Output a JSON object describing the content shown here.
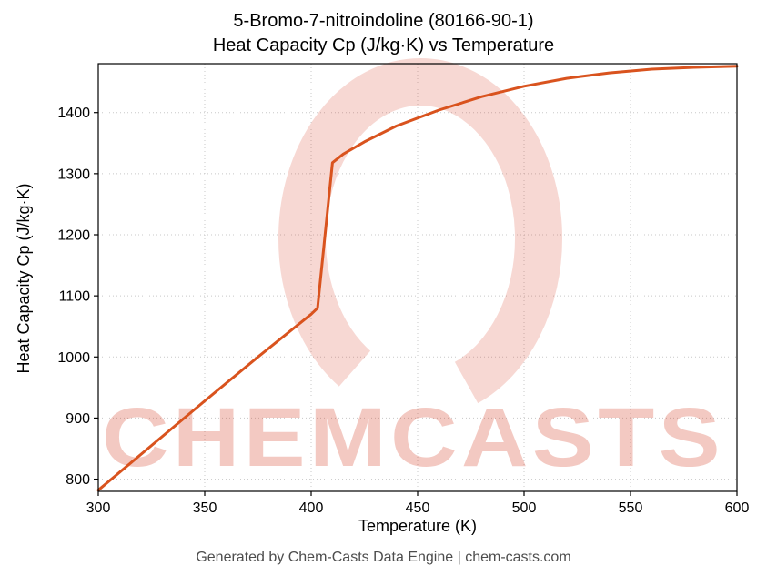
{
  "title": {
    "line1": "5-Bromo-7-nitroindoline (80166-90-1)",
    "line2": "Heat Capacity Cp (J/kg·K) vs Temperature"
  },
  "footer": "Generated by Chem-Casts Data Engine | chem-casts.com",
  "watermark": {
    "text": "CHEMCASTS",
    "color": "#d53e23",
    "text_opacity": 0.28,
    "ring_opacity": 0.2
  },
  "chart_data": {
    "type": "line",
    "title": "5-Bromo-7-nitroindoline (80166-90-1) Heat Capacity Cp (J/kg·K) vs Temperature",
    "xlabel": "Temperature (K)",
    "ylabel": "Heat Capacity Cp (J/kg·K)",
    "xlim": [
      300,
      600
    ],
    "ylim": [
      780,
      1480
    ],
    "xticks": [
      300,
      350,
      400,
      450,
      500,
      550,
      600
    ],
    "yticks": [
      800,
      900,
      1000,
      1100,
      1200,
      1300,
      1400
    ],
    "grid": true,
    "legend": "none",
    "line_color": "#d9531e",
    "series": [
      {
        "name": "Heat Capacity Cp",
        "x": [
          300,
          325,
          350,
          375,
          400,
          403,
          410,
          415,
          425,
          440,
          460,
          480,
          500,
          520,
          540,
          560,
          580,
          600
        ],
        "y": [
          782,
          855,
          928,
          1000,
          1070,
          1080,
          1318,
          1332,
          1352,
          1378,
          1404,
          1426,
          1443,
          1456,
          1465,
          1471,
          1474,
          1476
        ]
      }
    ]
  }
}
